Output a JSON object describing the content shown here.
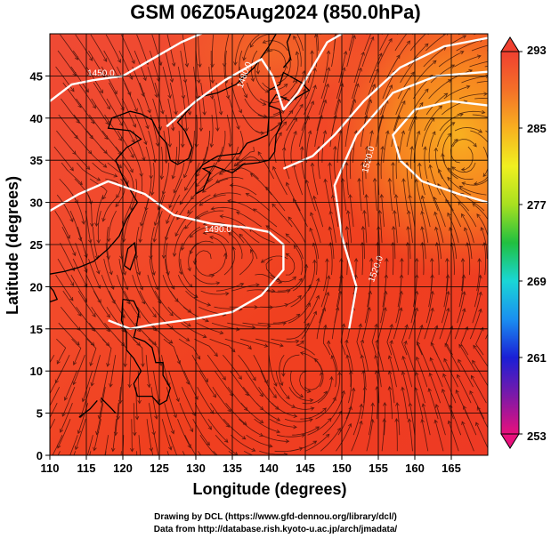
{
  "title": "GSM 06Z05Aug2024 (850.0hPa)",
  "credits": {
    "line1": "Drawing by DCL (https://www.gfd-dennou.org/library/dcl/)",
    "line2": "Data from http://database.rish.kyoto-u.ac.jp/arch/jmadata/"
  },
  "chart_data": {
    "type": "heatmap",
    "title": "GSM 06Z05Aug2024 (850.0hPa)",
    "xlabel": "Longitude (degrees)",
    "ylabel": "Latitude  (degrees)",
    "xlim": [
      110,
      170
    ],
    "ylim": [
      0,
      50
    ],
    "x_ticks": [
      110,
      115,
      120,
      125,
      130,
      135,
      140,
      145,
      150,
      155,
      160,
      165
    ],
    "y_ticks": [
      0,
      5,
      10,
      15,
      20,
      25,
      30,
      35,
      40,
      45
    ],
    "grid": true,
    "colorbar": {
      "ticks": [
        293,
        285,
        277,
        269,
        261,
        253
      ],
      "range": [
        253,
        293
      ],
      "colors": [
        "#e8107c",
        "#7d19a8",
        "#1a1fd6",
        "#1a8ff0",
        "#1ad6d6",
        "#20c040",
        "#a8e020",
        "#f0f020",
        "#f8b020",
        "#f47028",
        "#f04030"
      ]
    },
    "contours": [
      {
        "label": "1450.0",
        "level": 1450
      },
      {
        "label": "1480.0",
        "level": 1480
      },
      {
        "label": "1490.0",
        "level": 1490
      },
      {
        "label": "1520.0",
        "level": 1520
      },
      {
        "label": "1520.0",
        "level": 1520
      }
    ],
    "highlights": [
      {
        "description": "warm core",
        "lon": 166,
        "lat": 36
      },
      {
        "description": "cyclonic circulation",
        "lon": 131,
        "lat": 23
      }
    ]
  }
}
